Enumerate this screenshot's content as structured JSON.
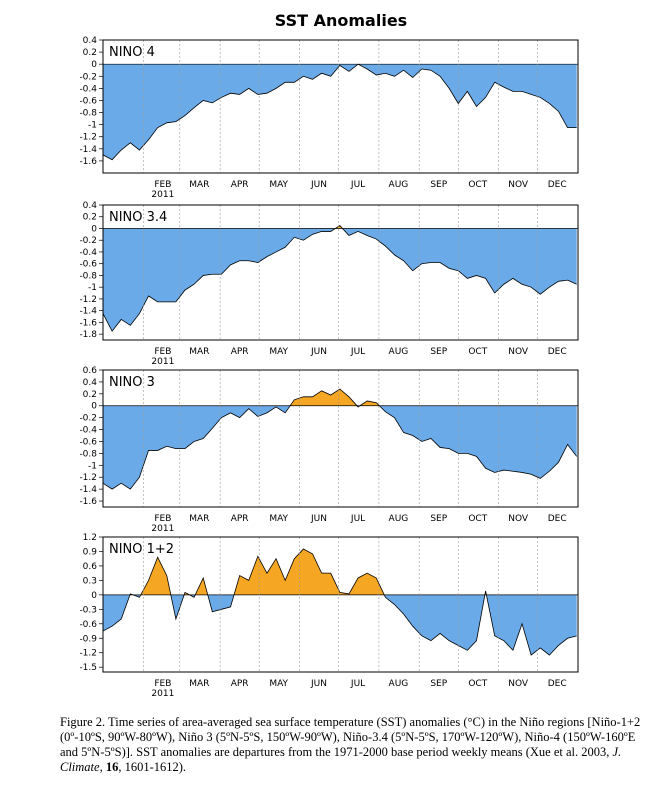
{
  "figure_title": "SST Anomalies",
  "colors": {
    "negative_fill": "#6aaae8",
    "positive_fill": "#f5a623",
    "outline": "#000000",
    "grid": "#9a9a9a"
  },
  "caption": {
    "part1": "Figure 2. Time series of area-averaged sea surface temperature (SST) anomalies (°C) in the Niño regions [Niño-1+2 (0º-10ºS, 90ºW-80ºW), Niño 3 (5ºN-5ºS, 150ºW-90ºW), Niño-3.4 (5ºN-5ºS, 170ºW-120ºW), Niño-4 (150ºW-160ºE and 5ºN-5ºS)]. SST anomalies are departures from the 1971-2000 base period weekly means (Xue et al. 2003, ",
    "journal": "J. Climate",
    "sep": ", ",
    "volume": "16",
    "part2": ", 1601-1612)."
  },
  "chart_data": [
    {
      "type": "area",
      "label": "NINO 4",
      "ylim": [
        -1.8,
        0.4
      ],
      "yticks": [
        0.4,
        0.2,
        0,
        -0.2,
        -0.4,
        -0.6,
        -0.8,
        -1,
        -1.2,
        -1.4,
        -1.6
      ],
      "xlim": [
        0,
        365
      ],
      "months": [
        {
          "label": "FEB",
          "day": 31,
          "year": "2011"
        },
        {
          "label": "MAR",
          "day": 59
        },
        {
          "label": "APR",
          "day": 90
        },
        {
          "label": "MAY",
          "day": 120
        },
        {
          "label": "JUN",
          "day": 151
        },
        {
          "label": "JUL",
          "day": 181
        },
        {
          "label": "AUG",
          "day": 212
        },
        {
          "label": "SEP",
          "day": 243
        },
        {
          "label": "OCT",
          "day": 273
        },
        {
          "label": "NOV",
          "day": 304
        },
        {
          "label": "DEC",
          "day": 334
        }
      ],
      "x": [
        0,
        7,
        14,
        21,
        28,
        35,
        42,
        49,
        56,
        63,
        70,
        77,
        84,
        91,
        98,
        105,
        112,
        119,
        126,
        133,
        140,
        147,
        154,
        161,
        168,
        175,
        182,
        189,
        196,
        203,
        210,
        217,
        224,
        231,
        238,
        245,
        252,
        259,
        266,
        273,
        280,
        287,
        294,
        301,
        308,
        315,
        322,
        329,
        336,
        343,
        350,
        357,
        364
      ],
      "y": [
        -1.5,
        -1.58,
        -1.42,
        -1.3,
        -1.42,
        -1.25,
        -1.05,
        -0.97,
        -0.95,
        -0.85,
        -0.72,
        -0.6,
        -0.64,
        -0.55,
        -0.48,
        -0.5,
        -0.4,
        -0.5,
        -0.48,
        -0.4,
        -0.3,
        -0.3,
        -0.2,
        -0.25,
        -0.15,
        -0.2,
        -0.02,
        -0.12,
        0,
        -0.08,
        -0.18,
        -0.15,
        -0.2,
        -0.1,
        -0.22,
        -0.08,
        -0.1,
        -0.2,
        -0.4,
        -0.65,
        -0.45,
        -0.7,
        -0.55,
        -0.3,
        -0.38,
        -0.45,
        -0.45,
        -0.5,
        -0.55,
        -0.65,
        -0.78,
        -1.05,
        -1.05
      ]
    },
    {
      "type": "area",
      "label": "NINO 3.4",
      "ylim": [
        -1.9,
        0.4
      ],
      "yticks": [
        0.4,
        0.2,
        0,
        -0.2,
        -0.4,
        -0.6,
        -0.8,
        -1,
        -1.2,
        -1.4,
        -1.6,
        -1.8
      ],
      "xlim": [
        0,
        365
      ],
      "months": [
        {
          "label": "FEB",
          "day": 31,
          "year": "2011"
        },
        {
          "label": "MAR",
          "day": 59
        },
        {
          "label": "APR",
          "day": 90
        },
        {
          "label": "MAY",
          "day": 120
        },
        {
          "label": "JUN",
          "day": 151
        },
        {
          "label": "JUL",
          "day": 181
        },
        {
          "label": "AUG",
          "day": 212
        },
        {
          "label": "SEP",
          "day": 243
        },
        {
          "label": "OCT",
          "day": 273
        },
        {
          "label": "NOV",
          "day": 304
        },
        {
          "label": "DEC",
          "day": 334
        }
      ],
      "x": [
        0,
        7,
        14,
        21,
        28,
        35,
        42,
        49,
        56,
        63,
        70,
        77,
        84,
        91,
        98,
        105,
        112,
        119,
        126,
        133,
        140,
        147,
        154,
        161,
        168,
        175,
        182,
        189,
        196,
        203,
        210,
        217,
        224,
        231,
        238,
        245,
        252,
        259,
        266,
        273,
        280,
        287,
        294,
        301,
        308,
        315,
        322,
        329,
        336,
        343,
        350,
        357,
        364
      ],
      "y": [
        -1.45,
        -1.75,
        -1.55,
        -1.65,
        -1.45,
        -1.15,
        -1.25,
        -1.25,
        -1.25,
        -1.05,
        -0.95,
        -0.8,
        -0.78,
        -0.78,
        -0.62,
        -0.55,
        -0.55,
        -0.58,
        -0.48,
        -0.4,
        -0.32,
        -0.15,
        -0.2,
        -0.1,
        -0.05,
        -0.05,
        0.05,
        -0.12,
        -0.05,
        -0.12,
        -0.18,
        -0.3,
        -0.45,
        -0.55,
        -0.72,
        -0.6,
        -0.58,
        -0.58,
        -0.68,
        -0.72,
        -0.85,
        -0.8,
        -0.85,
        -1.1,
        -0.95,
        -0.85,
        -0.95,
        -1,
        -1.12,
        -1,
        -0.9,
        -0.88,
        -0.95
      ]
    },
    {
      "type": "area",
      "label": "NINO 3",
      "ylim": [
        -1.7,
        0.6
      ],
      "yticks": [
        0.6,
        0.4,
        0.2,
        0,
        -0.2,
        -0.4,
        -0.6,
        -0.8,
        -1,
        -1.2,
        -1.4,
        -1.6
      ],
      "xlim": [
        0,
        365
      ],
      "months": [
        {
          "label": "FEB",
          "day": 31,
          "year": "2011"
        },
        {
          "label": "MAR",
          "day": 59
        },
        {
          "label": "APR",
          "day": 90
        },
        {
          "label": "MAY",
          "day": 120
        },
        {
          "label": "JUN",
          "day": 151
        },
        {
          "label": "JUL",
          "day": 181
        },
        {
          "label": "AUG",
          "day": 212
        },
        {
          "label": "SEP",
          "day": 243
        },
        {
          "label": "OCT",
          "day": 273
        },
        {
          "label": "NOV",
          "day": 304
        },
        {
          "label": "DEC",
          "day": 334
        }
      ],
      "x": [
        0,
        7,
        14,
        21,
        28,
        35,
        42,
        49,
        56,
        63,
        70,
        77,
        84,
        91,
        98,
        105,
        112,
        119,
        126,
        133,
        140,
        147,
        154,
        161,
        168,
        175,
        182,
        189,
        196,
        203,
        210,
        217,
        224,
        231,
        238,
        245,
        252,
        259,
        266,
        273,
        280,
        287,
        294,
        301,
        308,
        315,
        322,
        329,
        336,
        343,
        350,
        357,
        364
      ],
      "y": [
        -1.3,
        -1.4,
        -1.3,
        -1.4,
        -1.2,
        -0.75,
        -0.75,
        -0.68,
        -0.72,
        -0.72,
        -0.6,
        -0.55,
        -0.38,
        -0.2,
        -0.12,
        -0.2,
        -0.05,
        -0.18,
        -0.12,
        -0.02,
        -0.12,
        0.1,
        0.15,
        0.15,
        0.25,
        0.18,
        0.28,
        0.15,
        -0.02,
        0.08,
        0.05,
        -0.1,
        -0.2,
        -0.45,
        -0.5,
        -0.6,
        -0.55,
        -0.7,
        -0.72,
        -0.8,
        -0.8,
        -0.85,
        -1.05,
        -1.12,
        -1.08,
        -1.1,
        -1.12,
        -1.15,
        -1.22,
        -1.1,
        -0.95,
        -0.65,
        -0.85
      ]
    },
    {
      "type": "area",
      "label": "NINO 1+2",
      "ylim": [
        -1.6,
        1.2
      ],
      "yticks": [
        1.2,
        0.9,
        0.6,
        0.3,
        0,
        -0.3,
        -0.6,
        -0.9,
        -1.2,
        -1.5
      ],
      "xlim": [
        0,
        365
      ],
      "months": [
        {
          "label": "FEB",
          "day": 31,
          "year": "2011"
        },
        {
          "label": "MAR",
          "day": 59
        },
        {
          "label": "APR",
          "day": 90
        },
        {
          "label": "MAY",
          "day": 120
        },
        {
          "label": "JUN",
          "day": 151
        },
        {
          "label": "JUL",
          "day": 181
        },
        {
          "label": "AUG",
          "day": 212
        },
        {
          "label": "SEP",
          "day": 243
        },
        {
          "label": "OCT",
          "day": 273
        },
        {
          "label": "NOV",
          "day": 304
        },
        {
          "label": "DEC",
          "day": 334
        }
      ],
      "x": [
        0,
        7,
        14,
        21,
        28,
        35,
        42,
        49,
        56,
        63,
        70,
        77,
        84,
        91,
        98,
        105,
        112,
        119,
        126,
        133,
        140,
        147,
        154,
        161,
        168,
        175,
        182,
        189,
        196,
        203,
        210,
        217,
        224,
        231,
        238,
        245,
        252,
        259,
        266,
        273,
        280,
        287,
        294,
        301,
        308,
        315,
        322,
        329,
        336,
        343,
        350,
        357,
        364
      ],
      "y": [
        -0.75,
        -0.65,
        -0.5,
        0.02,
        -0.05,
        0.3,
        0.78,
        0.4,
        -0.5,
        0.05,
        -0.05,
        0.35,
        -0.35,
        -0.3,
        -0.25,
        0.4,
        0.3,
        0.8,
        0.45,
        0.75,
        0.3,
        0.75,
        0.95,
        0.85,
        0.45,
        0.45,
        0.05,
        0.02,
        0.35,
        0.45,
        0.35,
        -0.05,
        -0.2,
        -0.4,
        -0.65,
        -0.85,
        -0.95,
        -0.8,
        -0.95,
        -1.05,
        -1.15,
        -0.95,
        0.08,
        -0.85,
        -0.95,
        -1.15,
        -0.6,
        -1.25,
        -1.1,
        -1.25,
        -1.05,
        -0.9,
        -0.85
      ]
    }
  ]
}
